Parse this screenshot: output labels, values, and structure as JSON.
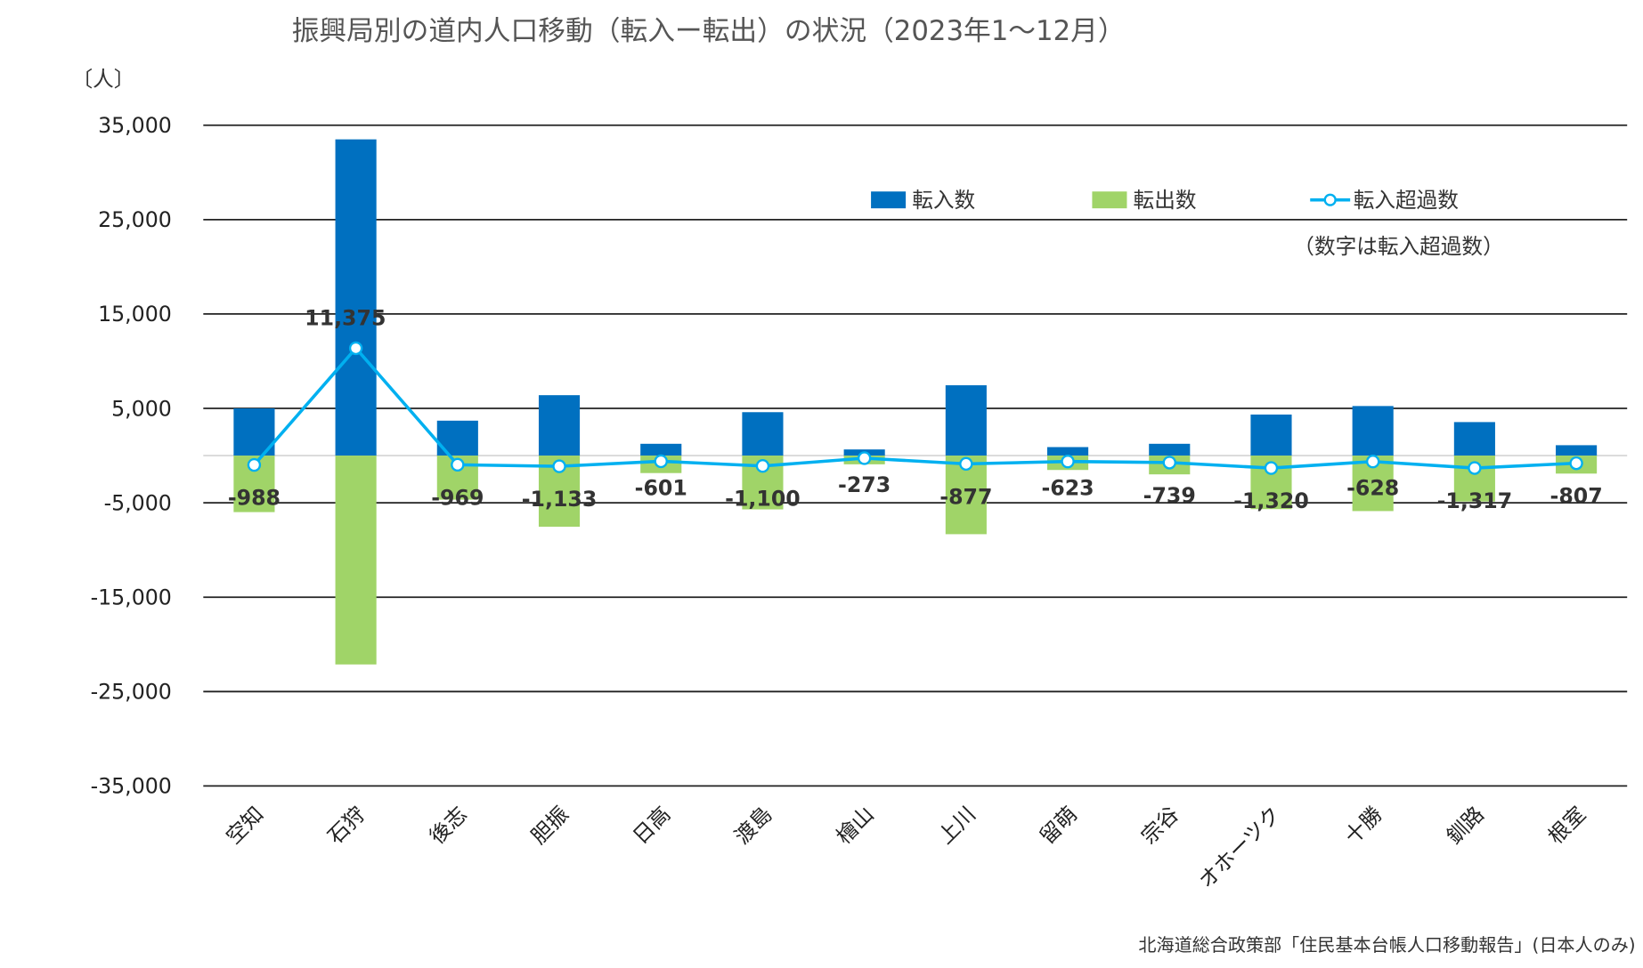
{
  "chart_data": {
    "type": "bar",
    "title": "振興局別の道内人口移動（転入ー転出）の状況（2023年1〜12月）",
    "ylabel": "〔人〕",
    "xlabel": "",
    "ylim": [
      -35000,
      35000
    ],
    "yticks": [
      "35,000",
      "25,000",
      "15,000",
      "5,000",
      "-5,000",
      "-15,000",
      "-25,000",
      "-35,000"
    ],
    "ytick_values": [
      35000,
      25000,
      15000,
      5000,
      -5000,
      -15000,
      -25000,
      -35000
    ],
    "grid": true,
    "legend_position": "top-right",
    "categories": [
      "空知",
      "石狩",
      "後志",
      "胆振",
      "日高",
      "渡島",
      "檜山",
      "上川",
      "留萌",
      "宗谷",
      "オホーツク",
      "十勝",
      "釧路",
      "根室"
    ],
    "series": [
      {
        "name": "転入数",
        "kind": "bar",
        "color": "#0070c0",
        "values": [
          5000,
          33500,
          3700,
          6400,
          1250,
          4600,
          650,
          7450,
          900,
          1250,
          4350,
          5250,
          3550,
          1100
        ]
      },
      {
        "name": "転出数",
        "kind": "bar",
        "color": "#a0d468",
        "values": [
          -5988,
          -22125,
          -4669,
          -7533,
          -1851,
          -5700,
          -923,
          -8327,
          -1523,
          -1989,
          -5670,
          -5878,
          -4867,
          -1907
        ]
      },
      {
        "name": "転入超過数",
        "kind": "line",
        "color": "#00b0f0",
        "values": [
          -988,
          11375,
          -969,
          -1133,
          -601,
          -1100,
          -273,
          -877,
          -623,
          -739,
          -1320,
          -628,
          -1317,
          -807
        ]
      }
    ],
    "data_labels": [
      "-988",
      "11,375",
      "-969",
      "-1,133",
      "-601",
      "-1,100",
      "-273",
      "-877",
      "-623",
      "-739",
      "-1,320",
      "-628",
      "-1,317",
      "-807"
    ],
    "annotation": "（数字は転入超過数）",
    "source": "北海道総合政策部「住民基本台帳人口移動報告」(日本人のみ)"
  }
}
